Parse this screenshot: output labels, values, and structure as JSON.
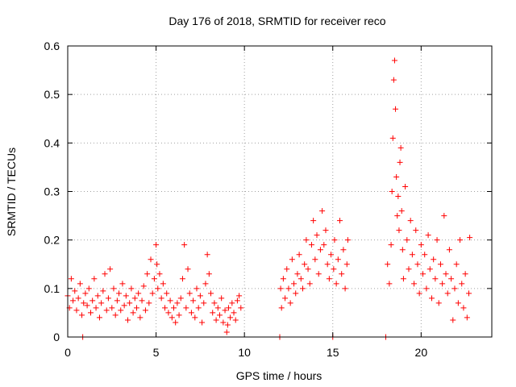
{
  "chart_data": {
    "type": "scatter",
    "title": "Day 176 of 2018, SRMTID for receiver reco",
    "xlabel": "GPS time / hours",
    "ylabel": "SRMTID / TECUs",
    "xlim": [
      0,
      24
    ],
    "ylim": [
      0,
      0.6
    ],
    "x_ticks": [
      0,
      5,
      10,
      15,
      20
    ],
    "x_tick_labels": [
      "0",
      "5",
      "10",
      "15",
      "20"
    ],
    "y_ticks": [
      0,
      0.1,
      0.2,
      0.3,
      0.4,
      0.5,
      0.6
    ],
    "y_tick_labels": [
      "0",
      "0.1",
      "0.2",
      "0.3",
      "0.4",
      "0.5",
      "0.6"
    ],
    "grid": true,
    "marker": "+",
    "series_color": "#ff0000",
    "series": [
      {
        "name": "SRMTID",
        "points": [
          [
            0.0,
            0.085
          ],
          [
            0.1,
            0.06
          ],
          [
            0.2,
            0.12
          ],
          [
            0.3,
            0.075
          ],
          [
            0.4,
            0.095
          ],
          [
            0.5,
            0.055
          ],
          [
            0.6,
            0.08
          ],
          [
            0.7,
            0.11
          ],
          [
            0.8,
            0.045
          ],
          [
            0.85,
            0.0
          ],
          [
            0.9,
            0.07
          ],
          [
            1.0,
            0.09
          ],
          [
            1.1,
            0.065
          ],
          [
            1.2,
            0.1
          ],
          [
            1.3,
            0.05
          ],
          [
            1.4,
            0.075
          ],
          [
            1.5,
            0.12
          ],
          [
            1.6,
            0.06
          ],
          [
            1.7,
            0.085
          ],
          [
            1.8,
            0.04
          ],
          [
            1.9,
            0.07
          ],
          [
            2.0,
            0.095
          ],
          [
            2.1,
            0.13
          ],
          [
            2.2,
            0.055
          ],
          [
            2.3,
            0.08
          ],
          [
            2.4,
            0.14
          ],
          [
            2.5,
            0.06
          ],
          [
            2.6,
            0.1
          ],
          [
            2.7,
            0.045
          ],
          [
            2.8,
            0.075
          ],
          [
            2.9,
            0.09
          ],
          [
            3.0,
            0.055
          ],
          [
            3.1,
            0.11
          ],
          [
            3.2,
            0.065
          ],
          [
            3.3,
            0.085
          ],
          [
            3.4,
            0.035
          ],
          [
            3.5,
            0.07
          ],
          [
            3.6,
            0.1
          ],
          [
            3.7,
            0.05
          ],
          [
            3.8,
            0.08
          ],
          [
            3.9,
            0.06
          ],
          [
            4.0,
            0.09
          ],
          [
            4.1,
            0.04
          ],
          [
            4.2,
            0.075
          ],
          [
            4.3,
            0.105
          ],
          [
            4.4,
            0.055
          ],
          [
            4.5,
            0.13
          ],
          [
            4.6,
            0.07
          ],
          [
            4.7,
            0.16
          ],
          [
            4.8,
            0.09
          ],
          [
            4.9,
            0.12
          ],
          [
            5.0,
            0.19
          ],
          [
            5.05,
            0.15
          ],
          [
            5.1,
            0.1
          ],
          [
            5.2,
            0.13
          ],
          [
            5.3,
            0.08
          ],
          [
            5.4,
            0.11
          ],
          [
            5.5,
            0.06
          ],
          [
            5.6,
            0.09
          ],
          [
            5.7,
            0.05
          ],
          [
            5.8,
            0.075
          ],
          [
            5.9,
            0.04
          ],
          [
            6.0,
            0.06
          ],
          [
            6.1,
            0.03
          ],
          [
            6.2,
            0.07
          ],
          [
            6.3,
            0.045
          ],
          [
            6.4,
            0.08
          ],
          [
            6.5,
            0.12
          ],
          [
            6.6,
            0.19
          ],
          [
            6.7,
            0.06
          ],
          [
            6.8,
            0.14
          ],
          [
            6.9,
            0.09
          ],
          [
            7.0,
            0.05
          ],
          [
            7.1,
            0.075
          ],
          [
            7.2,
            0.04
          ],
          [
            7.3,
            0.1
          ],
          [
            7.4,
            0.06
          ],
          [
            7.5,
            0.085
          ],
          [
            7.6,
            0.03
          ],
          [
            7.7,
            0.07
          ],
          [
            7.8,
            0.11
          ],
          [
            7.9,
            0.17
          ],
          [
            8.0,
            0.13
          ],
          [
            8.1,
            0.09
          ],
          [
            8.2,
            0.05
          ],
          [
            8.3,
            0.07
          ],
          [
            8.4,
            0.035
          ],
          [
            8.5,
            0.06
          ],
          [
            8.6,
            0.045
          ],
          [
            8.7,
            0.08
          ],
          [
            8.8,
            0.03
          ],
          [
            8.9,
            0.055
          ],
          [
            9.0,
            0.01
          ],
          [
            9.05,
            0.025
          ],
          [
            9.1,
            0.06
          ],
          [
            9.2,
            0.04
          ],
          [
            9.3,
            0.07
          ],
          [
            9.4,
            0.05
          ],
          [
            9.5,
            0.035
          ],
          [
            9.6,
            0.075
          ],
          [
            9.7,
            0.085
          ],
          [
            9.8,
            0.06
          ],
          [
            12.0,
            0.0
          ],
          [
            12.05,
            0.1
          ],
          [
            12.1,
            0.06
          ],
          [
            12.2,
            0.12
          ],
          [
            12.3,
            0.08
          ],
          [
            12.4,
            0.14
          ],
          [
            12.5,
            0.1
          ],
          [
            12.6,
            0.07
          ],
          [
            12.7,
            0.16
          ],
          [
            12.8,
            0.11
          ],
          [
            12.9,
            0.09
          ],
          [
            13.0,
            0.13
          ],
          [
            13.1,
            0.17
          ],
          [
            13.2,
            0.12
          ],
          [
            13.3,
            0.1
          ],
          [
            13.4,
            0.15
          ],
          [
            13.5,
            0.2
          ],
          [
            13.6,
            0.14
          ],
          [
            13.7,
            0.11
          ],
          [
            13.8,
            0.19
          ],
          [
            13.9,
            0.24
          ],
          [
            14.0,
            0.16
          ],
          [
            14.1,
            0.21
          ],
          [
            14.2,
            0.13
          ],
          [
            14.3,
            0.18
          ],
          [
            14.4,
            0.26
          ],
          [
            14.5,
            0.19
          ],
          [
            14.6,
            0.22
          ],
          [
            14.7,
            0.15
          ],
          [
            14.8,
            0.12
          ],
          [
            14.9,
            0.17
          ],
          [
            15.0,
            0.0
          ],
          [
            15.05,
            0.14
          ],
          [
            15.1,
            0.2
          ],
          [
            15.2,
            0.11
          ],
          [
            15.3,
            0.16
          ],
          [
            15.4,
            0.24
          ],
          [
            15.5,
            0.13
          ],
          [
            15.6,
            0.18
          ],
          [
            15.7,
            0.1
          ],
          [
            15.8,
            0.15
          ],
          [
            15.85,
            0.2
          ],
          [
            18.0,
            0.0
          ],
          [
            18.1,
            0.15
          ],
          [
            18.2,
            0.11
          ],
          [
            18.3,
            0.19
          ],
          [
            18.35,
            0.3
          ],
          [
            18.4,
            0.41
          ],
          [
            18.45,
            0.53
          ],
          [
            18.5,
            0.57
          ],
          [
            18.55,
            0.47
          ],
          [
            18.6,
            0.33
          ],
          [
            18.65,
            0.25
          ],
          [
            18.7,
            0.29
          ],
          [
            18.75,
            0.22
          ],
          [
            18.8,
            0.36
          ],
          [
            18.85,
            0.39
          ],
          [
            18.9,
            0.26
          ],
          [
            18.95,
            0.18
          ],
          [
            19.0,
            0.12
          ],
          [
            19.1,
            0.31
          ],
          [
            19.2,
            0.2
          ],
          [
            19.3,
            0.14
          ],
          [
            19.4,
            0.24
          ],
          [
            19.5,
            0.17
          ],
          [
            19.6,
            0.11
          ],
          [
            19.7,
            0.22
          ],
          [
            19.8,
            0.15
          ],
          [
            19.9,
            0.09
          ],
          [
            20.0,
            0.19
          ],
          [
            20.1,
            0.13
          ],
          [
            20.2,
            0.17
          ],
          [
            20.3,
            0.1
          ],
          [
            20.4,
            0.21
          ],
          [
            20.5,
            0.14
          ],
          [
            20.6,
            0.08
          ],
          [
            20.7,
            0.16
          ],
          [
            20.8,
            0.12
          ],
          [
            20.9,
            0.2
          ],
          [
            21.0,
            0.07
          ],
          [
            21.1,
            0.15
          ],
          [
            21.2,
            0.11
          ],
          [
            21.3,
            0.25
          ],
          [
            21.4,
            0.13
          ],
          [
            21.5,
            0.09
          ],
          [
            21.6,
            0.18
          ],
          [
            21.7,
            0.12
          ],
          [
            21.8,
            0.035
          ],
          [
            21.9,
            0.1
          ],
          [
            22.0,
            0.15
          ],
          [
            22.1,
            0.07
          ],
          [
            22.2,
            0.2
          ],
          [
            22.3,
            0.11
          ],
          [
            22.4,
            0.06
          ],
          [
            22.5,
            0.13
          ],
          [
            22.6,
            0.04
          ],
          [
            22.7,
            0.09
          ],
          [
            22.75,
            0.205
          ]
        ]
      }
    ]
  }
}
